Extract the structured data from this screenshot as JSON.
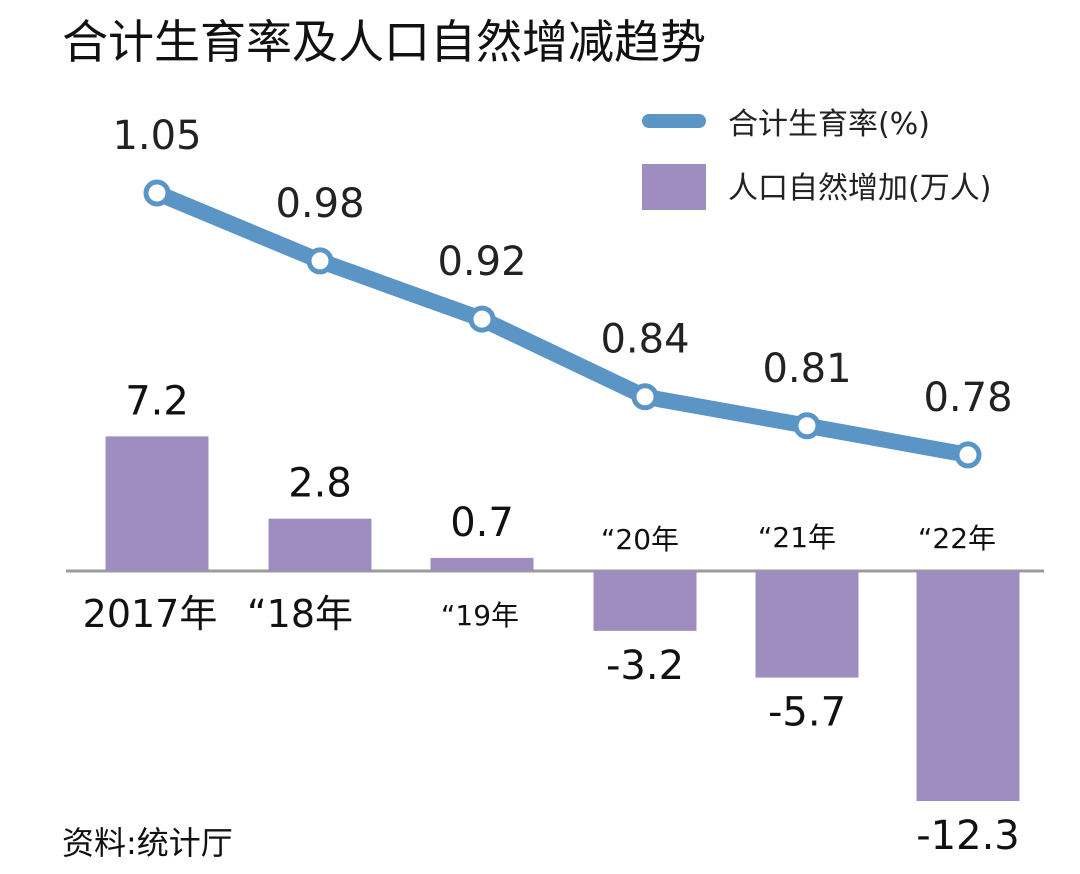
{
  "chart_data": {
    "type": "bar",
    "title": "合计生育率及人口自然增减趋势",
    "source": "资料:统计厅",
    "categories": [
      "2017年",
      "“18年",
      "“19年",
      "“20年",
      "“21年",
      "“22年"
    ],
    "series": [
      {
        "name": "合计生育率(%)",
        "type": "line",
        "values": [
          1.05,
          0.98,
          0.92,
          0.84,
          0.81,
          0.78
        ],
        "labels": [
          "1.05",
          "0.98",
          "0.92",
          "0.84",
          "0.81",
          "0.78"
        ],
        "color": "#5b95c6"
      },
      {
        "name": "人口自然增加(万人)",
        "type": "bar",
        "values": [
          7.2,
          2.8,
          0.7,
          -3.2,
          -5.7,
          -12.3
        ],
        "labels": [
          "7.2",
          "2.8",
          "0.7",
          "-3.2",
          "-5.7",
          "-12.3"
        ],
        "color": "#9f8dbf"
      }
    ],
    "legend_position": "top-right",
    "grid": false
  }
}
